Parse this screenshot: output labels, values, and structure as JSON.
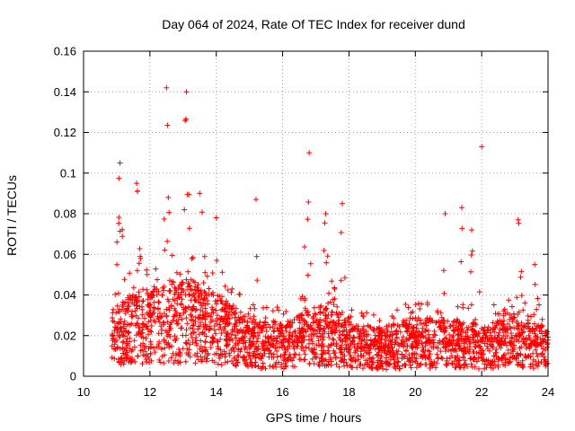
{
  "chart_data": {
    "type": "scatter",
    "title": "Day 064 of 2024, Rate Of TEC Index for receiver dund",
    "xlabel": "GPS time / hours",
    "ylabel": "ROTI / TECUs",
    "xlim": [
      10,
      24
    ],
    "ylim": [
      0,
      0.16
    ],
    "x_ticks": [
      10,
      12,
      14,
      16,
      18,
      20,
      22,
      24
    ],
    "x_tick_labels": [
      "10",
      "12",
      "14",
      "16",
      "18",
      "20",
      "22",
      "24"
    ],
    "y_ticks": [
      0,
      0.02,
      0.04,
      0.06,
      0.08,
      0.1,
      0.12,
      0.14,
      0.16
    ],
    "y_tick_labels": [
      "0",
      "0.02",
      "0.04",
      "0.06",
      "0.08",
      "0.1",
      "0.12",
      "0.14",
      "0.16"
    ],
    "grid": true,
    "marker": "+",
    "color": "#ff0000",
    "series": [
      {
        "name": "ROTI",
        "x_start": 10.85,
        "x_end": 24.0,
        "baseline": [
          [
            10.85,
            0.018
          ],
          [
            11.5,
            0.022
          ],
          [
            12.5,
            0.025
          ],
          [
            13.2,
            0.026
          ],
          [
            14.0,
            0.022
          ],
          [
            14.5,
            0.019
          ],
          [
            15.0,
            0.015
          ],
          [
            16.0,
            0.014
          ],
          [
            16.8,
            0.018
          ],
          [
            17.5,
            0.02
          ],
          [
            18.2,
            0.014
          ],
          [
            19.0,
            0.013
          ],
          [
            20.0,
            0.016
          ],
          [
            21.0,
            0.015
          ],
          [
            22.0,
            0.014
          ],
          [
            23.0,
            0.016
          ],
          [
            24.0,
            0.013
          ]
        ],
        "bursts": [
          {
            "t": 11.1,
            "peak": 0.105,
            "width": 0.15
          },
          {
            "t": 11.6,
            "peak": 0.095,
            "width": 0.2
          },
          {
            "t": 12.5,
            "peak": 0.142,
            "width": 0.12
          },
          {
            "t": 13.1,
            "peak": 0.14,
            "width": 0.12
          },
          {
            "t": 13.5,
            "peak": 0.09,
            "width": 0.25
          },
          {
            "t": 14.0,
            "peak": 0.078,
            "width": 0.3
          },
          {
            "t": 15.2,
            "peak": 0.087,
            "width": 0.05
          },
          {
            "t": 16.8,
            "peak": 0.11,
            "width": 0.2
          },
          {
            "t": 17.3,
            "peak": 0.08,
            "width": 0.3
          },
          {
            "t": 17.8,
            "peak": 0.085,
            "width": 0.15
          },
          {
            "t": 20.9,
            "peak": 0.08,
            "width": 0.1
          },
          {
            "t": 21.4,
            "peak": 0.083,
            "width": 0.05
          },
          {
            "t": 21.7,
            "peak": 0.072,
            "width": 0.15
          },
          {
            "t": 22.0,
            "peak": 0.113,
            "width": 0.08
          },
          {
            "t": 23.1,
            "peak": 0.077,
            "width": 0.15
          },
          {
            "t": 23.6,
            "peak": 0.055,
            "width": 0.2
          }
        ],
        "point_count": 2600
      }
    ]
  }
}
